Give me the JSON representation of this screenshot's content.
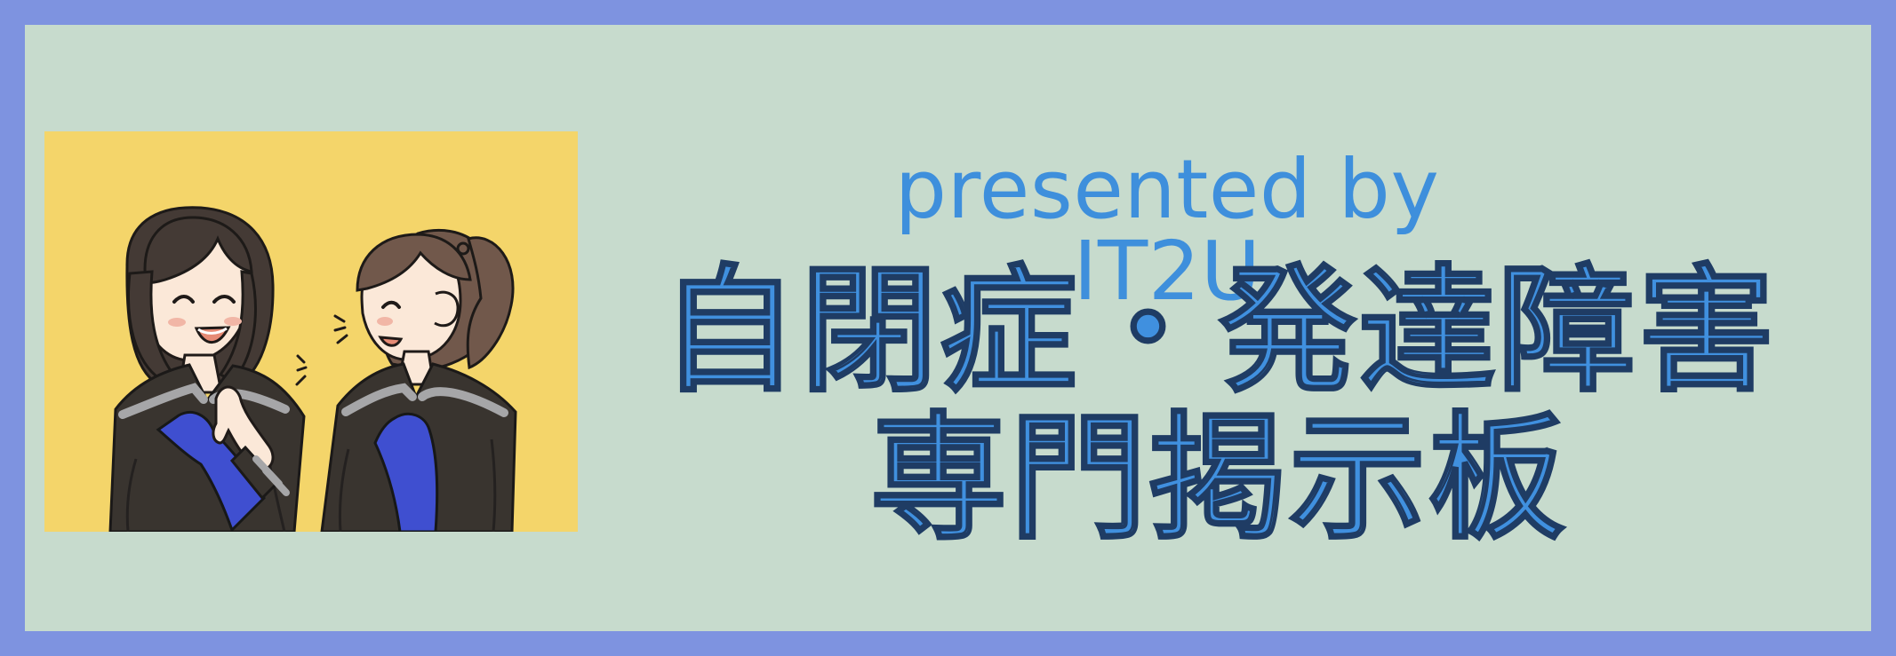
{
  "banner": {
    "presenter_text": "presented by IT2U",
    "title_line_1": "自閉症・発達障害",
    "title_line_2": "専門掲示板",
    "illustration": {
      "description_icon": "two-smiling-students-icon"
    },
    "colors": {
      "border": "#7e93e0",
      "background": "#c7dbcd",
      "text": "#4090df",
      "illustration_background": "#f4d56a",
      "uniform": "#39342f",
      "scarf": "#3f4fd0"
    }
  }
}
